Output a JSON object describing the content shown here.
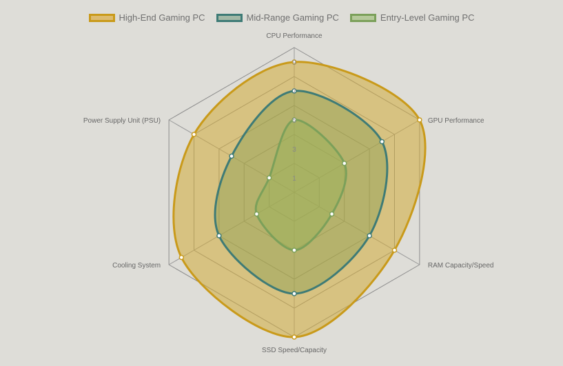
{
  "chart_data": {
    "type": "radar",
    "axes": [
      "CPU Performance",
      "GPU Performance",
      "RAM Capacity/Speed",
      "SSD Speed/Capacity",
      "Cooling System",
      "Power Supply Unit (PSU)"
    ],
    "r_range": [
      0,
      10
    ],
    "ticks": [
      1,
      3,
      5,
      7,
      9
    ],
    "grid": true,
    "legend_position": "top",
    "series": [
      {
        "name": "High-End Gaming PC",
        "values": [
          9,
          10,
          8,
          10,
          9,
          8
        ],
        "stroke": "#c99a1a",
        "fill": "rgba(210,172,58,0.55)"
      },
      {
        "name": "Mid-Range Gaming PC",
        "values": [
          7,
          7,
          6,
          7,
          6,
          5
        ],
        "stroke": "#3e7b76",
        "fill": "rgba(139,160,82,0.45)"
      },
      {
        "name": "Entry-Level Gaming PC",
        "values": [
          5,
          4,
          3,
          4,
          3,
          2
        ],
        "stroke": "#7ba05a",
        "fill": "rgba(152,178,88,0.45)"
      }
    ]
  },
  "legend_styles": [
    {
      "border": "#c99a1a",
      "bg": "#ddbb6e"
    },
    {
      "border": "#3e7b76",
      "bg": "#a2b8a6"
    },
    {
      "border": "#7ba05a",
      "bg": "#b5c99a"
    }
  ]
}
